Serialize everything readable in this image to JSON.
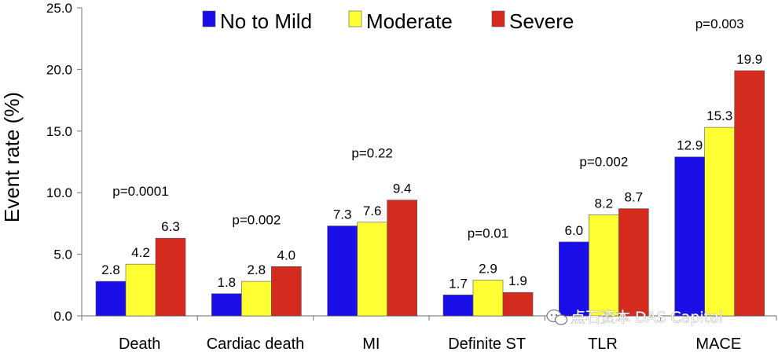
{
  "chart_data": {
    "type": "bar",
    "title": "",
    "xlabel": "",
    "ylabel": "Event rate (%)",
    "ylim": [
      0,
      25
    ],
    "yticks": [
      "0.0",
      "5.0",
      "10.0",
      "15.0",
      "20.0",
      "25.0"
    ],
    "grid": false,
    "legend_position": "top",
    "categories": [
      "Death",
      "Cardiac death",
      "MI",
      "Definite ST",
      "TLR",
      "MACE"
    ],
    "series": [
      {
        "name": "No to Mild",
        "color": "#1c0ee8",
        "values": [
          2.8,
          1.8,
          7.3,
          1.7,
          6.0,
          12.9
        ],
        "labels": [
          "2.8",
          "1.8",
          "7.3",
          "1.7",
          "6.0",
          "12.9"
        ]
      },
      {
        "name": "Moderate",
        "color": "#ffff33",
        "values": [
          4.2,
          2.8,
          7.6,
          2.9,
          8.2,
          15.3
        ],
        "labels": [
          "4.2",
          "2.8",
          "7.6",
          "2.9",
          "8.2",
          "15.3"
        ]
      },
      {
        "name": "Severe",
        "color": "#d52a1e",
        "values": [
          6.3,
          4.0,
          9.4,
          1.9,
          8.7,
          19.9
        ],
        "labels": [
          "6.3",
          "4.0",
          "9.4",
          "1.9",
          "8.7",
          "19.9"
        ]
      }
    ],
    "p_values": [
      "p=0.0001",
      "p=0.002",
      "p=0.22",
      "p=0.01",
      "p=0.002",
      "p=0.003"
    ]
  },
  "watermark": {
    "text": "点石资本 DAS Capital",
    "icon": "wechat-icon"
  }
}
